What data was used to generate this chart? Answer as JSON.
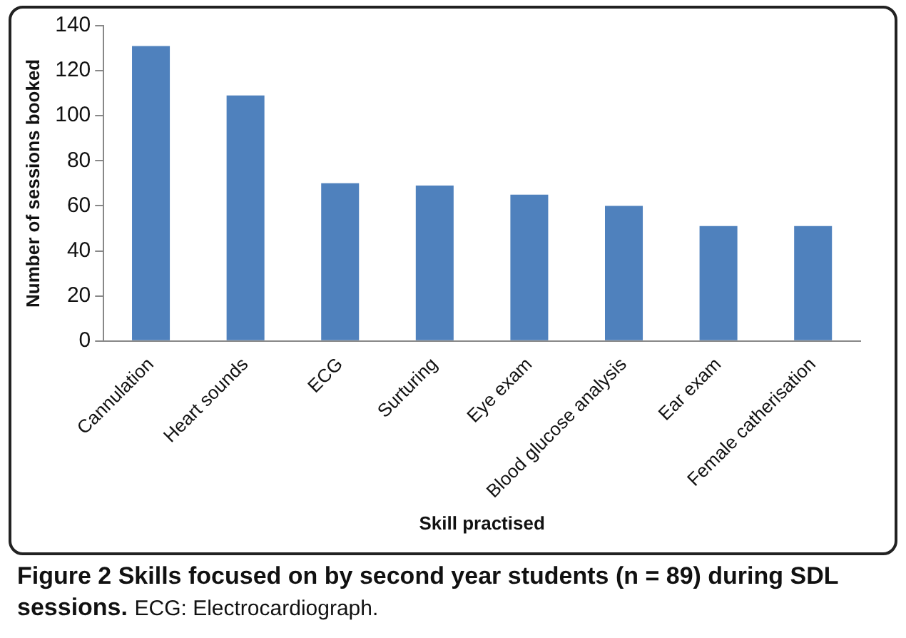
{
  "chart_data": {
    "type": "bar",
    "title": "Figure 2 Skills focused on by second year students (n = 89) during SDL sessions.",
    "annotations": [
      "ECG: Electrocardiograph."
    ],
    "xlabel": "Skill practised",
    "ylabel": "Number of sessions booked",
    "categories": [
      "Cannulation",
      "Heart sounds",
      "ECG",
      "Surturing",
      "Eye exam",
      "Blood glucose analysis",
      "Ear exam",
      "Female catherisation"
    ],
    "values": [
      131,
      109,
      70,
      69,
      65,
      60,
      51,
      51
    ],
    "color": "#4f81bd",
    "ylim": [
      0,
      140
    ],
    "yticks": [
      0,
      20,
      40,
      60,
      80,
      100,
      120,
      140
    ],
    "grid": false,
    "legend": false
  }
}
